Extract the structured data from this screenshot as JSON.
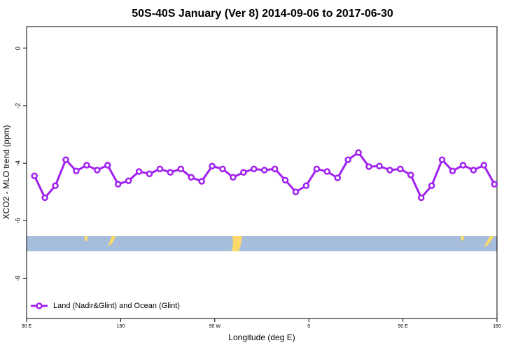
{
  "chart_data": {
    "type": "line",
    "title": "50S-40S January (Ver 8)   2014-09-06 to 2017-06-30",
    "x_label": "Longitude (deg E)",
    "y_label": "XCO2 - MLO trend (ppm)",
    "x": [
      97.5,
      107.5,
      117.5,
      127.5,
      137.5,
      147.5,
      157.5,
      167.5,
      177.5,
      187.5,
      197.5,
      207.5,
      217.5,
      227.5,
      237.5,
      247.5,
      257.5,
      267.5,
      277.5,
      287.5,
      297.5,
      307.5,
      317.5,
      327.5,
      337.5,
      347.5,
      357.5,
      367.5,
      377.5,
      387.5,
      397.5,
      407.5,
      417.5,
      427.5,
      437.5,
      447.5,
      457.5,
      467.5,
      477.5,
      487.5,
      497.5,
      507.5,
      517.5,
      527.5,
      537.5
    ],
    "series": [
      {
        "name": "Land (Nadir&Glint) and Ocean (Glint)",
        "color": "#a020f0",
        "values": [
          -4.44,
          -5.2,
          -4.78,
          -3.88,
          -4.27,
          -4.07,
          -4.24,
          -4.07,
          -4.73,
          -4.61,
          -4.29,
          -4.37,
          -4.2,
          -4.32,
          -4.2,
          -4.49,
          -4.63,
          -4.1,
          -4.2,
          -4.49,
          -4.32,
          -4.2,
          -4.24,
          -4.2,
          -4.59,
          -5.0,
          -4.78,
          -4.2,
          -4.29,
          -4.51,
          -3.88,
          -3.63,
          -4.12,
          -4.1,
          -4.24,
          -4.2,
          -4.41,
          -5.2,
          -4.78,
          -3.88,
          -4.27,
          -4.07,
          -4.24,
          -4.07,
          -4.73
        ]
      }
    ],
    "xlim": [
      90,
      540
    ],
    "xticks": [
      {
        "value": 90,
        "label": "90 E"
      },
      {
        "value": 180,
        "label": "180"
      },
      {
        "value": 270,
        "label": "90 W"
      },
      {
        "value": 360,
        "label": "0"
      },
      {
        "value": 450,
        "label": "90 E"
      },
      {
        "value": 540,
        "label": "180"
      }
    ],
    "ylim": [
      -9.4,
      0.75
    ],
    "yticks": [
      0,
      -2,
      -4,
      -6,
      -8
    ],
    "legend": "bottom-left"
  }
}
